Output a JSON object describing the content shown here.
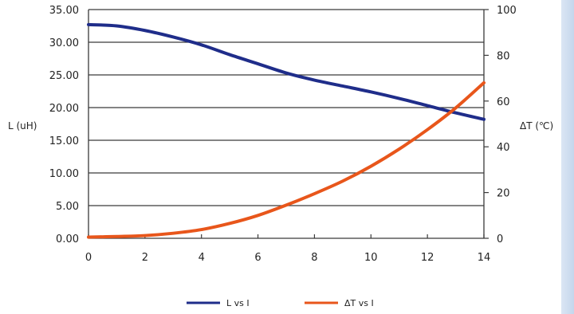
{
  "chart_data": {
    "type": "line",
    "title": "",
    "xlabel": "",
    "ylabel_left": "L (uH)",
    "ylabel_right": "ΔT (℃)",
    "xlim": [
      0,
      14
    ],
    "ylim_left": [
      0,
      35
    ],
    "ylim_right": [
      0,
      100
    ],
    "grid": "horizontal",
    "x_ticks": [
      "0",
      "2",
      "4",
      "6",
      "8",
      "10",
      "12",
      "14"
    ],
    "y_left_ticks": [
      "0.00",
      "5.00",
      "10.00",
      "15.00",
      "20.00",
      "25.00",
      "30.00",
      "35.00"
    ],
    "y_right_ticks": [
      "0",
      "20",
      "40",
      "60",
      "80",
      "100"
    ],
    "legend_position": "bottom",
    "series": [
      {
        "name": "L vs I",
        "axis": "left",
        "color": "#1f2d8a",
        "x": [
          0,
          1,
          2,
          3,
          4,
          5,
          6,
          7,
          8,
          9,
          10,
          11,
          12,
          13,
          14
        ],
        "y": [
          32.7,
          32.5,
          31.8,
          30.8,
          29.6,
          28.1,
          26.7,
          25.3,
          24.2,
          23.3,
          22.4,
          21.4,
          20.3,
          19.2,
          18.2
        ]
      },
      {
        "name": "ΔT vs I",
        "axis": "right",
        "color": "#e8561b",
        "x": [
          0,
          1,
          2,
          3,
          4,
          5,
          6,
          7,
          8,
          9,
          10,
          11,
          12,
          13,
          14
        ],
        "y": [
          0.5,
          0.8,
          1.2,
          2.2,
          3.8,
          6.5,
          10,
          14.5,
          19.5,
          25,
          31.5,
          39,
          47.5,
          57,
          68
        ]
      }
    ]
  },
  "decoration": {
    "right_edge_colors": [
      "#dbe6f4",
      "#c5d6ec"
    ]
  }
}
